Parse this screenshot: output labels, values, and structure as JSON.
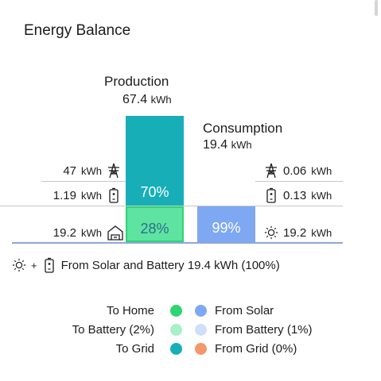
{
  "title": "Energy Balance",
  "production": {
    "label": "Production",
    "value": "67.4",
    "unit": "kWh",
    "to_grid": {
      "value": "47",
      "unit": "kWh"
    },
    "to_battery": {
      "value": "1.19",
      "unit": "kWh"
    },
    "to_home": {
      "value": "19.2",
      "unit": "kWh"
    },
    "upper_pct": "70%",
    "lower_pct": "28%"
  },
  "consumption": {
    "label": "Consumption",
    "value": "19.4",
    "unit": "kWh",
    "from_grid": {
      "value": "0.06",
      "unit": "kWh"
    },
    "from_battery": {
      "value": "0.13",
      "unit": "kWh"
    },
    "from_solar": {
      "value": "19.2",
      "unit": "kWh"
    },
    "pct": "99%"
  },
  "summary": {
    "plus": "+",
    "text": "From Solar and Battery 19.4 kWh (100%)"
  },
  "legend": {
    "left": [
      {
        "label": "To Home",
        "color": "#2ed573"
      },
      {
        "label": "To Battery (2%)",
        "color": "#a8f0c6"
      },
      {
        "label": "To Grid",
        "color": "#17aeb8"
      }
    ],
    "right": [
      {
        "label": "From Solar",
        "color": "#7ea8f2"
      },
      {
        "label": "From Battery (1%)",
        "color": "#cfdff9"
      },
      {
        "label": "From Grid (0%)",
        "color": "#f5956a"
      }
    ]
  },
  "colors": {
    "to_grid": "#17aeb8",
    "to_home": "#5fe3a1",
    "from_solar": "#7ea8f2",
    "axis": "#8fa6d9"
  }
}
